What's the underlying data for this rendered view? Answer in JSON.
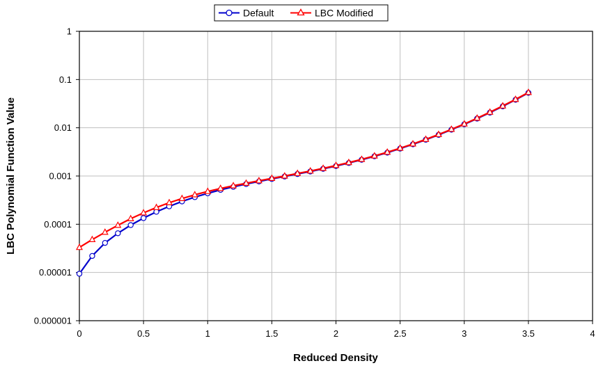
{
  "chart_data": {
    "type": "line",
    "title": "",
    "xlabel": "Reduced Density",
    "ylabel": "LBC Polynomial Function Value",
    "xlim": [
      0,
      4
    ],
    "ylim": [
      1e-06,
      1
    ],
    "yscale": "log",
    "grid": true,
    "legend_position": "top-center",
    "x_ticks": [
      "0",
      "0.5",
      "1",
      "1.5",
      "2",
      "2.5",
      "3",
      "3.5",
      "4"
    ],
    "y_ticks": [
      "0.000001",
      "0.00001",
      "0.0001",
      "0.001",
      "0.01",
      "0.1",
      "1"
    ],
    "x": [
      0,
      0.1,
      0.2,
      0.3,
      0.4,
      0.5,
      0.6,
      0.7,
      0.8,
      0.9,
      1.0,
      1.1,
      1.2,
      1.3,
      1.4,
      1.5,
      1.6,
      1.7,
      1.8,
      1.9,
      2.0,
      2.1,
      2.2,
      2.3,
      2.4,
      2.5,
      2.6,
      2.7,
      2.8,
      2.9,
      3.0,
      3.1,
      3.2,
      3.3,
      3.4,
      3.5
    ],
    "series": [
      {
        "name": "Default",
        "color": "#0000cc",
        "marker": "circle",
        "values": [
          9.4e-06,
          2.2e-05,
          4.1e-05,
          6.5e-05,
          9.6e-05,
          0.000134,
          0.000181,
          0.000235,
          0.000297,
          0.000365,
          0.000438,
          0.000516,
          0.000597,
          0.000682,
          0.000772,
          0.000869,
          0.000976,
          0.0011,
          0.00124,
          0.00141,
          0.00161,
          0.00186,
          0.00217,
          0.00256,
          0.00305,
          0.0037,
          0.00454,
          0.00565,
          0.00713,
          0.00912,
          0.0118,
          0.0155,
          0.0206,
          0.0278,
          0.0381,
          0.053
        ]
      },
      {
        "name": "LBC Modified",
        "color": "#ff0000",
        "marker": "triangle",
        "values": [
          3.3e-05,
          4.8e-05,
          6.8e-05,
          9.5e-05,
          0.00013,
          0.000172,
          0.000222,
          0.000279,
          0.000341,
          0.000408,
          0.000478,
          0.000551,
          0.000628,
          0.000709,
          0.000797,
          0.000894,
          0.001,
          0.00113,
          0.00127,
          0.00144,
          0.00165,
          0.0019,
          0.00221,
          0.00261,
          0.00311,
          0.00377,
          0.00462,
          0.00575,
          0.00725,
          0.00927,
          0.012,
          0.0158,
          0.021,
          0.0283,
          0.0387,
          0.054
        ]
      }
    ]
  }
}
